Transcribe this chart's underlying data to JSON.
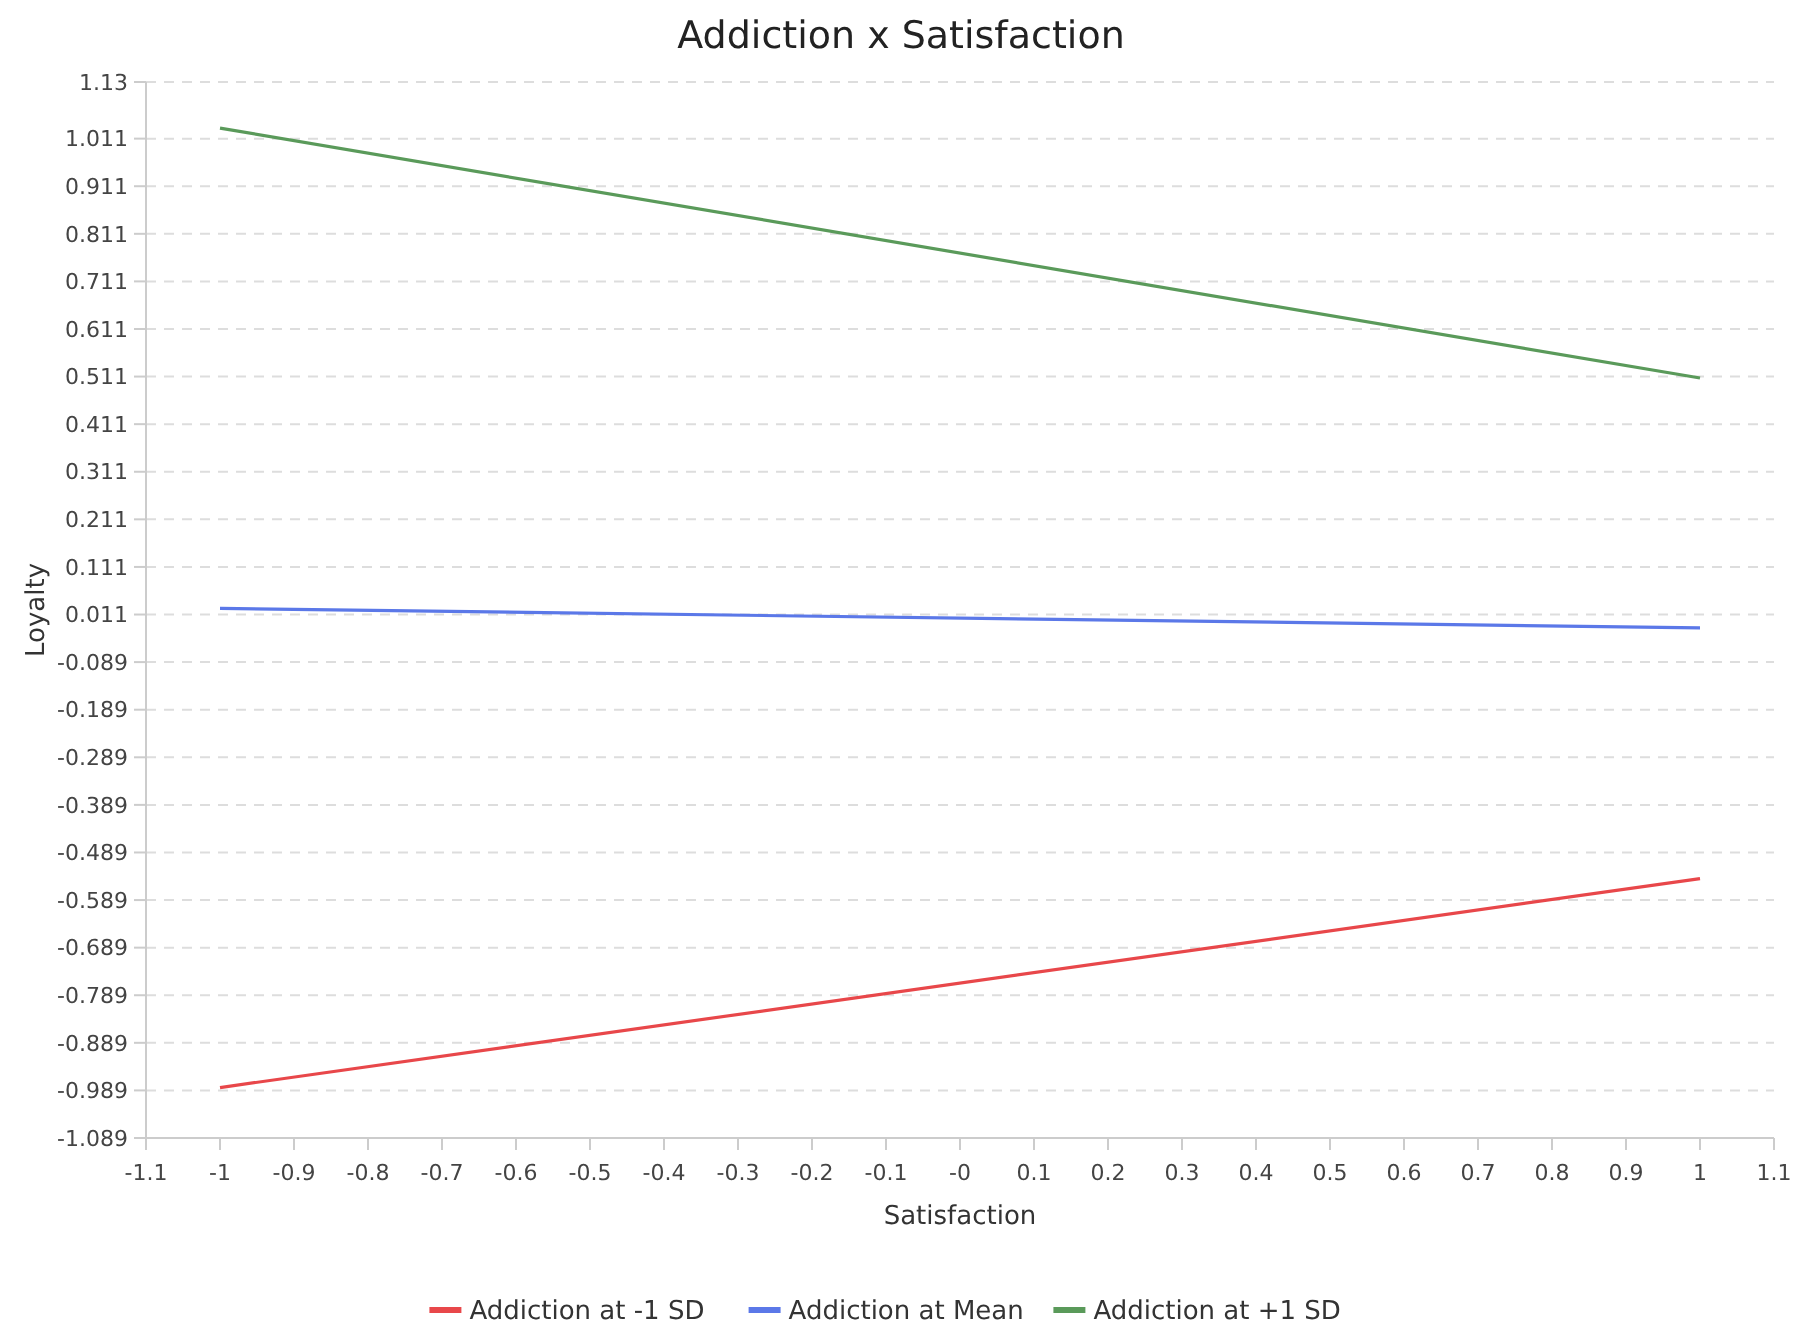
{
  "chart_data": {
    "type": "line",
    "title": "Addiction x Satisfaction",
    "xlabel": "Satisfaction",
    "ylabel": "Loyalty",
    "x": [
      -1,
      1
    ],
    "series": [
      {
        "name": "Addiction at -1 SD",
        "color": "#e8474a",
        "values": [
          -0.983,
          -0.544
        ]
      },
      {
        "name": "Addiction at Mean",
        "color": "#5b78e8",
        "values": [
          0.024,
          -0.017
        ]
      },
      {
        "name": "Addiction at +1 SD",
        "color": "#5a9a5a",
        "values": [
          1.033,
          0.508
        ]
      }
    ],
    "xlim": [
      -1.1,
      1.1
    ],
    "xticks": [
      -1.1,
      -1,
      -0.9,
      -0.8,
      -0.7,
      -0.6,
      -0.5,
      -0.4,
      -0.3,
      -0.2,
      -0.1,
      {
        "value": 0,
        "label": "-0"
      },
      0.1,
      0.2,
      0.3,
      0.4,
      0.5,
      0.6,
      0.7,
      0.8,
      0.9,
      1,
      1.1
    ],
    "ylim": [
      -1.089,
      1.13
    ],
    "yticks": [
      -1.089,
      -0.989,
      -0.889,
      -0.789,
      -0.689,
      -0.589,
      -0.489,
      -0.389,
      -0.289,
      -0.189,
      -0.089,
      0.011,
      0.111,
      0.211,
      0.311,
      0.411,
      0.511,
      0.611,
      0.711,
      0.811,
      0.911,
      1.011,
      1.13
    ],
    "grid": "y",
    "legend": "bottom",
    "marker": "none",
    "line_style": "solid"
  }
}
